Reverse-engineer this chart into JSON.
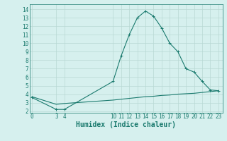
{
  "x_main": [
    0,
    3,
    4,
    10,
    11,
    12,
    13,
    14,
    15,
    16,
    17,
    18,
    19,
    20,
    21,
    22,
    23
  ],
  "y_main": [
    3.6,
    2.2,
    2.2,
    5.5,
    8.5,
    11.0,
    13.0,
    13.8,
    13.2,
    11.8,
    10.0,
    9.0,
    7.0,
    6.6,
    5.5,
    4.5,
    4.4
  ],
  "x_ref": [
    0,
    3,
    4,
    10,
    11,
    12,
    13,
    14,
    15,
    16,
    17,
    18,
    19,
    20,
    21,
    22,
    23
  ],
  "y_ref": [
    3.7,
    2.8,
    2.9,
    3.3,
    3.4,
    3.5,
    3.6,
    3.7,
    3.75,
    3.85,
    3.9,
    4.0,
    4.05,
    4.1,
    4.2,
    4.3,
    4.4
  ],
  "xlabel": "Humidex (Indice chaleur)",
  "xticks": [
    0,
    3,
    4,
    10,
    11,
    12,
    13,
    14,
    15,
    16,
    17,
    18,
    19,
    20,
    21,
    22,
    23
  ],
  "yticks": [
    2,
    3,
    4,
    5,
    6,
    7,
    8,
    9,
    10,
    11,
    12,
    13,
    14
  ],
  "ylim": [
    1.8,
    14.6
  ],
  "xlim": [
    -0.3,
    23.5
  ],
  "line_color": "#1a7a6e",
  "bg_color": "#d6f0ee",
  "grid_color": "#b8d8d4",
  "tick_fontsize": 5.5,
  "xlabel_fontsize": 7.0
}
